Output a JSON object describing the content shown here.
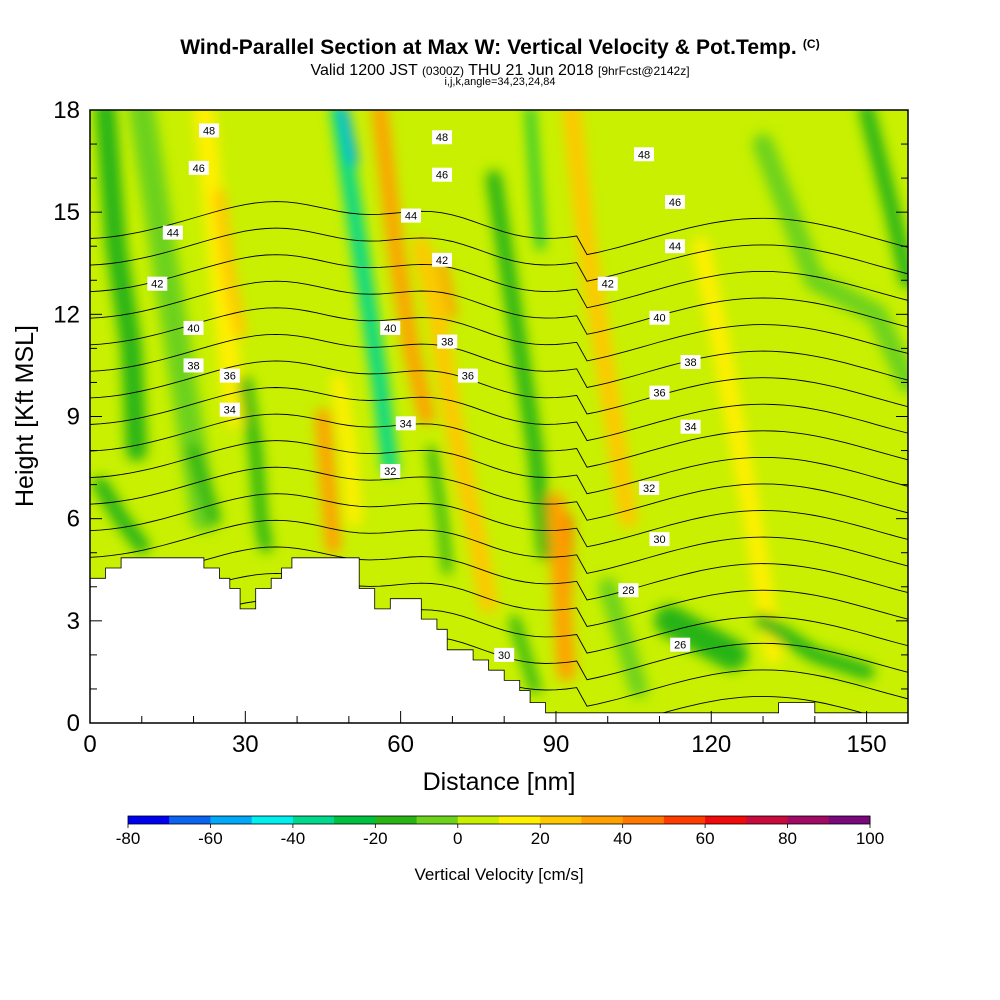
{
  "title": {
    "main": "Wind-Parallel Section at Max W: Vertical Velocity & Pot.Temp.",
    "copyright": "(C)",
    "valid_prefix": "Valid 1200 JST",
    "valid_utc": "(0300Z)",
    "valid_date": "THU 21 Jun 2018",
    "forecast": "[9hrFcst@2142z]",
    "indices": "i,j,k,angle=34,23,24,84"
  },
  "chart_data": {
    "type": "heatmap",
    "xlabel": "Distance [nm]",
    "ylabel": "Height [Kft MSL]",
    "xlim": [
      0,
      158
    ],
    "ylim": [
      0,
      18
    ],
    "x_ticks": [
      0,
      30,
      60,
      90,
      120,
      150
    ],
    "y_ticks": [
      0,
      3,
      6,
      9,
      12,
      15,
      18
    ],
    "colorbar": {
      "label": "Vertical Velocity [cm/s]",
      "tick_values": [
        -80,
        -60,
        -40,
        -20,
        0,
        20,
        40,
        60,
        80,
        100
      ],
      "levels": [
        -80,
        -70,
        -60,
        -50,
        -40,
        -30,
        -20,
        -10,
        0,
        10,
        20,
        30,
        40,
        50,
        60,
        70,
        80,
        90,
        100
      ],
      "colors": [
        "#0000f0",
        "#0a64f0",
        "#00a8f8",
        "#00f0f0",
        "#00d88c",
        "#00c040",
        "#28b414",
        "#6cd21c",
        "#c8f000",
        "#fff000",
        "#ffc800",
        "#ffa000",
        "#ff7800",
        "#ff3c00",
        "#f00a0a",
        "#c80a3c",
        "#a00a64",
        "#78087c"
      ]
    },
    "terrain": [
      [
        0,
        4.25
      ],
      [
        3,
        4.25
      ],
      [
        3,
        4.55
      ],
      [
        6,
        4.55
      ],
      [
        6,
        4.85
      ],
      [
        22,
        4.85
      ],
      [
        22,
        4.55
      ],
      [
        25,
        4.55
      ],
      [
        25,
        4.25
      ],
      [
        27,
        4.25
      ],
      [
        27,
        3.95
      ],
      [
        29,
        3.95
      ],
      [
        29,
        3.35
      ],
      [
        32,
        3.35
      ],
      [
        32,
        3.95
      ],
      [
        35,
        3.95
      ],
      [
        35,
        4.25
      ],
      [
        37,
        4.25
      ],
      [
        37,
        4.55
      ],
      [
        39,
        4.55
      ],
      [
        39,
        4.85
      ],
      [
        52,
        4.85
      ],
      [
        52,
        3.95
      ],
      [
        55,
        3.95
      ],
      [
        55,
        3.35
      ],
      [
        58,
        3.35
      ],
      [
        58,
        3.65
      ],
      [
        64,
        3.65
      ],
      [
        64,
        3.05
      ],
      [
        67,
        3.05
      ],
      [
        67,
        2.75
      ],
      [
        69,
        2.75
      ],
      [
        69,
        2.15
      ],
      [
        74,
        2.15
      ],
      [
        74,
        1.85
      ],
      [
        77,
        1.85
      ],
      [
        77,
        1.55
      ],
      [
        80,
        1.55
      ],
      [
        80,
        1.25
      ],
      [
        83,
        1.25
      ],
      [
        83,
        0.95
      ],
      [
        85,
        0.95
      ],
      [
        85,
        0.6
      ],
      [
        88,
        0.6
      ],
      [
        88,
        0.3
      ],
      [
        133,
        0.3
      ],
      [
        133,
        0.6
      ],
      [
        140,
        0.6
      ],
      [
        140,
        0.3
      ],
      [
        158,
        0.3
      ],
      [
        158,
        0
      ]
    ],
    "theta_contours": {
      "unit": "deg",
      "labels": [
        {
          "value": "48",
          "x": 23,
          "y": 17.4
        },
        {
          "value": "46",
          "x": 21,
          "y": 16.3
        },
        {
          "value": "44",
          "x": 16,
          "y": 14.4
        },
        {
          "value": "42",
          "x": 13,
          "y": 12.9
        },
        {
          "value": "40",
          "x": 20,
          "y": 11.6
        },
        {
          "value": "38",
          "x": 20,
          "y": 10.5
        },
        {
          "value": "36",
          "x": 27,
          "y": 10.2
        },
        {
          "value": "34",
          "x": 27,
          "y": 9.2
        },
        {
          "value": "48",
          "x": 68,
          "y": 17.2
        },
        {
          "value": "46",
          "x": 68,
          "y": 16.1
        },
        {
          "value": "44",
          "x": 62,
          "y": 14.9
        },
        {
          "value": "42",
          "x": 68,
          "y": 13.6
        },
        {
          "value": "40",
          "x": 58,
          "y": 11.6
        },
        {
          "value": "38",
          "x": 69,
          "y": 11.2
        },
        {
          "value": "36",
          "x": 73,
          "y": 10.2
        },
        {
          "value": "34",
          "x": 61,
          "y": 8.8
        },
        {
          "value": "32",
          "x": 58,
          "y": 7.4
        },
        {
          "value": "48",
          "x": 107,
          "y": 16.7
        },
        {
          "value": "46",
          "x": 113,
          "y": 15.3
        },
        {
          "value": "44",
          "x": 113,
          "y": 14.0
        },
        {
          "value": "42",
          "x": 100,
          "y": 12.9
        },
        {
          "value": "40",
          "x": 110,
          "y": 11.9
        },
        {
          "value": "38",
          "x": 116,
          "y": 10.6
        },
        {
          "value": "36",
          "x": 110,
          "y": 9.7
        },
        {
          "value": "34",
          "x": 116,
          "y": 8.7
        },
        {
          "value": "32",
          "x": 108,
          "y": 6.9
        },
        {
          "value": "30",
          "x": 110,
          "y": 5.4
        },
        {
          "value": "28",
          "x": 104,
          "y": 3.9
        },
        {
          "value": "26",
          "x": 114,
          "y": 2.3
        },
        {
          "value": "30",
          "x": 80,
          "y": 2.0
        }
      ]
    }
  }
}
